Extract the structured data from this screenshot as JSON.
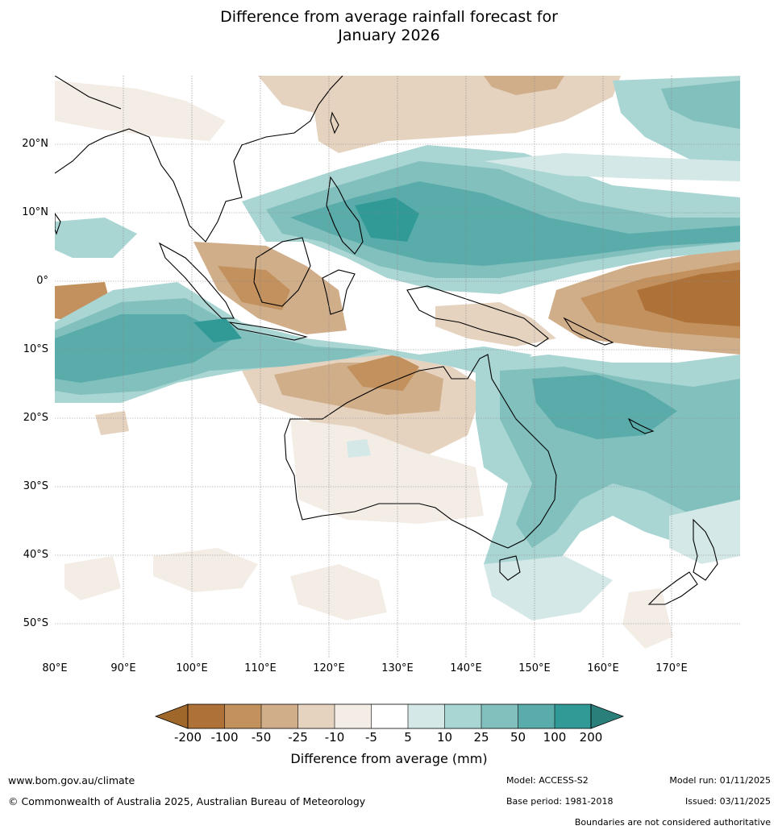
{
  "title_line1": "Difference from average rainfall forecast for",
  "title_line2": "January 2026",
  "lat_labels": [
    "20°N",
    "10°N",
    "0°",
    "10°S",
    "20°S",
    "30°S",
    "40°S",
    "50°S"
  ],
  "lon_labels": [
    "80°E",
    "90°E",
    "100°E",
    "110°E",
    "120°E",
    "130°E",
    "140°E",
    "150°E",
    "160°E",
    "170°E"
  ],
  "colorbar": {
    "title": "Difference from average (mm)",
    "ticks": [
      "-200",
      "-100",
      "-50",
      "-25",
      "-10",
      "-5",
      "5",
      "10",
      "25",
      "50",
      "100",
      "200"
    ],
    "colors": [
      "#a0672a",
      "#ae7239",
      "#c2915d",
      "#d1ae8a",
      "#e5d3c0",
      "#f3ede6",
      "#ffffff",
      "#d3e8e7",
      "#a9d5d3",
      "#82c0be",
      "#59acaa",
      "#319a96",
      "#2b7f7b"
    ]
  },
  "footer": {
    "website": "www.bom.gov.au/climate",
    "copyright": "© Commonwealth of Australia 2025, Australian Bureau of Meteorology",
    "model": "Model: ACCESS-S2",
    "base_period": "Base period: 1981-2018",
    "model_run": "Model run: 01/11/2025",
    "issued": "Issued: 03/11/2025",
    "disclaimer": "Boundaries are not considered authoritative"
  }
}
